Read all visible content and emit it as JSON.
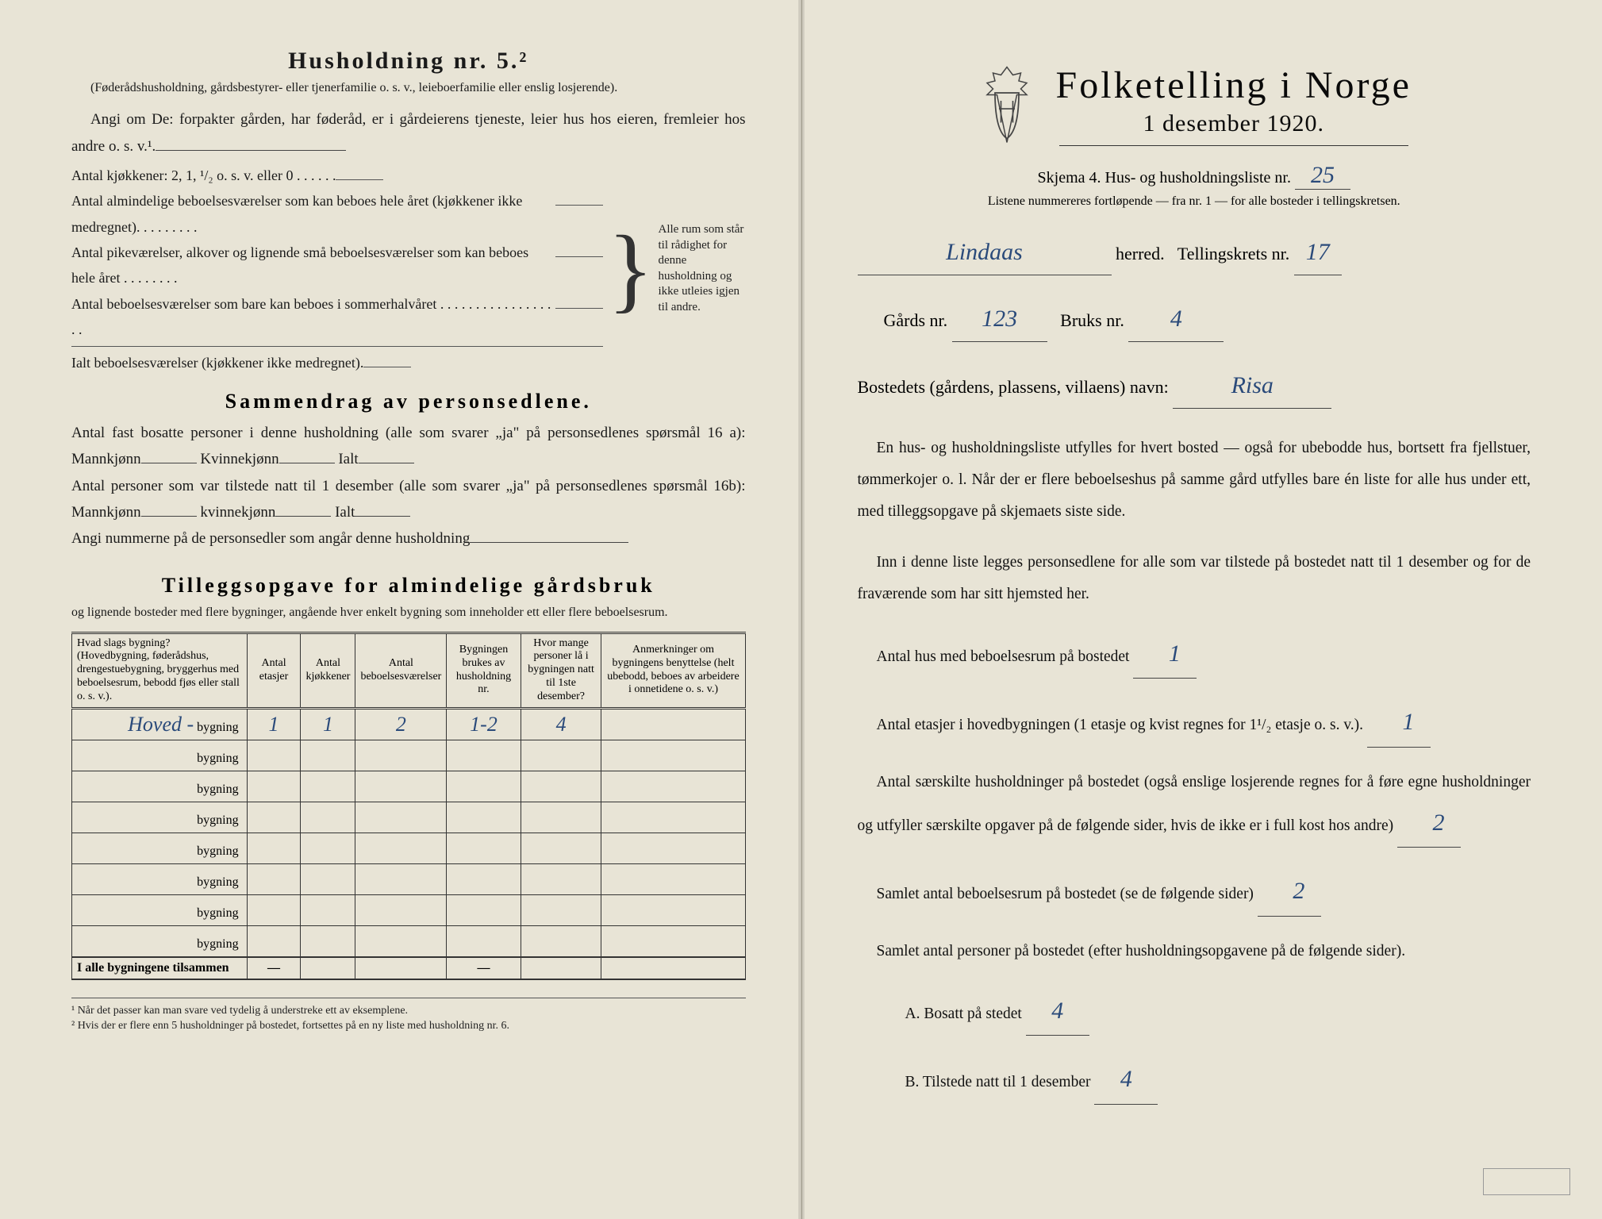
{
  "left": {
    "heading": "Husholdning nr. 5.²",
    "heading_sub": "(Føderådshusholdning, gårdsbestyrer- eller tjenerfamilie o. s. v., leieboerfamilie eller enslig losjerende).",
    "para1": "Angi om De: forpakter gården, har føderåd, er i gårdeierens tjeneste, leier hus hos eieren, fremleier hos andre o. s. v.¹.",
    "brace_items": [
      "Antal kjøkkener: 2, 1, ¹/₂ o. s. v. eller 0 . . . . . .",
      "Antal almindelige beboelsesværelser som kan beboes hele året (kjøkkener ikke medregnet). . . . . . . . .",
      "Antal pikeværelser, alkover og lignende små beboelsesværelser som kan beboes hele året . . . . . . . .",
      "Antal beboelsesværelser som bare kan beboes i sommerhalvåret . . . . . . . . . . . . . . . . . .",
      "Ialt beboelsesværelser (kjøkkener ikke medregnet)."
    ],
    "brace_note": "Alle rum som står til rådighet for denne husholdning og ikke utleies igjen til andre.",
    "section2_title": "Sammendrag av personsedlene.",
    "s2_line1": "Antal fast bosatte personer i denne husholdning (alle som svarer „ja\" på personsedlenes spørsmål 16 a): Mannkjønn",
    "s2_kv": "Kvinnekjønn",
    "s2_ialt": "Ialt",
    "s2_line2": "Antal personer som var tilstede natt til 1 desember (alle som svarer „ja\" på personsedlenes spørsmål 16b): Mannkjønn",
    "s2_kv2": "kvinnekjønn",
    "s2_line3": "Angi nummerne på de personsedler som angår denne husholdning",
    "section3_title": "Tilleggsopgave for almindelige gårdsbruk",
    "s3_intro": "og lignende bosteder med flere bygninger, angående hver enkelt bygning som inneholder ett eller flere beboelsesrum.",
    "table": {
      "headers": [
        "Hvad slags bygning?\n(Hovedbygning, føderådshus, drengestuebygning, bryggerhus med beboelsesrum, bebodd fjøs eller stall o. s. v.).",
        "Antal etasjer",
        "Antal kjøkkener",
        "Antal beboelsesværelser",
        "Bygningen brukes av husholdning nr.",
        "Hvor mange personer lå i bygningen natt til 1ste desember?",
        "Anmerkninger om bygningens benyttelse (helt ubebodd, beboes av arbeidere i onnetidene o. s. v.)"
      ],
      "rows": [
        {
          "label_hw": "Hoved -",
          "suffix": "bygning",
          "c1": "1",
          "c2": "1",
          "c3": "2",
          "c4": "1-2",
          "c5": "4",
          "c6": ""
        },
        {
          "label_hw": "",
          "suffix": "bygning",
          "c1": "",
          "c2": "",
          "c3": "",
          "c4": "",
          "c5": "",
          "c6": ""
        },
        {
          "label_hw": "",
          "suffix": "bygning",
          "c1": "",
          "c2": "",
          "c3": "",
          "c4": "",
          "c5": "",
          "c6": ""
        },
        {
          "label_hw": "",
          "suffix": "bygning",
          "c1": "",
          "c2": "",
          "c3": "",
          "c4": "",
          "c5": "",
          "c6": ""
        },
        {
          "label_hw": "",
          "suffix": "bygning",
          "c1": "",
          "c2": "",
          "c3": "",
          "c4": "",
          "c5": "",
          "c6": ""
        },
        {
          "label_hw": "",
          "suffix": "bygning",
          "c1": "",
          "c2": "",
          "c3": "",
          "c4": "",
          "c5": "",
          "c6": ""
        },
        {
          "label_hw": "",
          "suffix": "bygning",
          "c1": "",
          "c2": "",
          "c3": "",
          "c4": "",
          "c5": "",
          "c6": ""
        },
        {
          "label_hw": "",
          "suffix": "bygning",
          "c1": "",
          "c2": "",
          "c3": "",
          "c4": "",
          "c5": "",
          "c6": ""
        }
      ],
      "footer_label": "I alle bygningene tilsammen",
      "footer_dash": "—"
    },
    "footnote1": "¹  Når det passer kan man svare ved tydelig å understreke ett av eksemplene.",
    "footnote2": "²  Hvis der er flere enn 5 husholdninger på bostedet, fortsettes på en ny liste med husholdning nr. 6."
  },
  "right": {
    "title": "Folketelling i Norge",
    "date": "1 desember 1920.",
    "skjema_a": "Skjema 4.  Hus- og husholdningsliste nr.",
    "skjema_nr": "25",
    "listene": "Listene nummereres fortløpende — fra nr. 1 — for alle bosteder i tellingskretsen.",
    "herred_value": "Lindaas",
    "herred_label": "herred.",
    "tellingskrets_label": "Tellingskrets nr.",
    "tellingskrets_nr": "17",
    "gards_label": "Gårds nr.",
    "gards_nr": "123",
    "bruks_label": "Bruks nr.",
    "bruks_nr": "4",
    "bosted_label": "Bostedets (gårdens, plassens, villaens) navn:",
    "bosted_value": "Risa",
    "para1": "En hus- og husholdningsliste utfylles for hvert bosted — også for ubebodde hus, bortsett fra fjellstuer, tømmerkojer o. l. Når der er flere beboelseshus på samme gård utfylles bare én liste for alle hus under ett, med tilleggsopgave på skjemaets siste side.",
    "para2": "Inn i denne liste legges personsedlene for alle som var tilstede på bostedet natt til 1 desember og for de fraværende som har sitt hjemsted her.",
    "q1_label": "Antal hus med beboelsesrum på bostedet",
    "q1_value": "1",
    "q2_label_a": "Antal etasjer i hovedbygningen (1 etasje og kvist regnes for 1¹/₂ etasje o. s. v.).",
    "q2_value": "1",
    "q3_label": "Antal særskilte husholdninger på bostedet (også enslige losjerende regnes for å føre egne husholdninger og utfyller særskilte opgaver på de følgende sider, hvis de ikke er i full kost hos andre)",
    "q3_value": "2",
    "q4_label": "Samlet antal beboelsesrum på bostedet (se de følgende sider)",
    "q4_value": "2",
    "q5_label": "Samlet antal personer på bostedet (efter husholdningsopgavene på de følgende sider).",
    "qA_label": "A.  Bosatt på stedet",
    "qA_value": "4",
    "qB_label": "B.  Tilstede natt til 1 desember",
    "qB_value": "4"
  },
  "colors": {
    "paper": "#e8e4d6",
    "ink": "#1a1a1a",
    "handwriting": "#2a4a7a"
  }
}
